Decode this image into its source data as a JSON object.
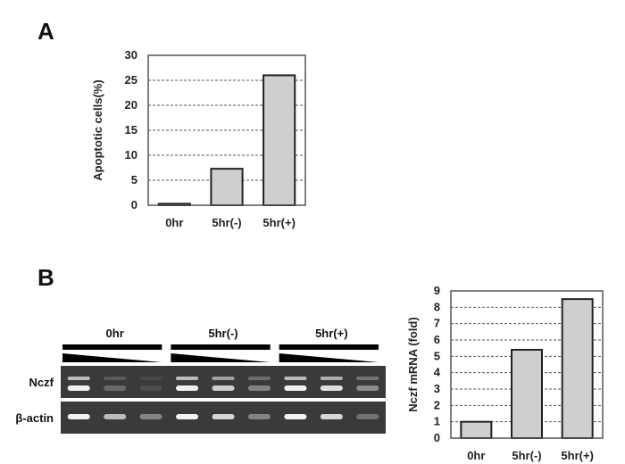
{
  "panels": {
    "a_label": "A",
    "b_label": "B"
  },
  "chart_data": [
    {
      "type": "bar",
      "title": "",
      "categories": [
        "0hr",
        "5hr(-)",
        "5hr(+)"
      ],
      "values": [
        0.3,
        7.3,
        26
      ],
      "ylabel": "Apoptotic cells(%)",
      "xlabel": "",
      "ylim": [
        0,
        30
      ],
      "yticks": [
        0,
        5,
        10,
        15,
        20,
        25,
        30
      ],
      "grid": true
    },
    {
      "type": "bar",
      "title": "",
      "categories": [
        "0hr",
        "5hr(-)",
        "5hr(+)"
      ],
      "values": [
        1.0,
        5.4,
        8.5
      ],
      "ylabel": "Nczf mRNA (fold)",
      "xlabel": "",
      "ylim": [
        0,
        9
      ],
      "yticks": [
        0,
        1,
        2,
        3,
        4,
        5,
        6,
        7,
        8,
        9
      ],
      "grid": true
    }
  ],
  "gel": {
    "lanes": [
      "0hr",
      "5hr(-)",
      "5hr(+)"
    ],
    "rows": [
      "Nczf",
      "β-actin"
    ],
    "bands": {
      "Nczf": [
        [
          1.0,
          0.25,
          0.1
        ],
        [
          1.0,
          0.8,
          0.4
        ],
        [
          1.0,
          0.9,
          0.45
        ]
      ],
      "β-actin": [
        [
          1.0,
          0.7,
          0.4
        ],
        [
          1.0,
          0.85,
          0.4
        ],
        [
          1.0,
          0.85,
          0.3
        ]
      ]
    }
  },
  "colors": {
    "bar_fill": "#cfcfcf",
    "bar_stroke": "#222222",
    "grid": "#555555",
    "gel_bg": "#3a3a3a",
    "band": "#f2f2f2"
  }
}
